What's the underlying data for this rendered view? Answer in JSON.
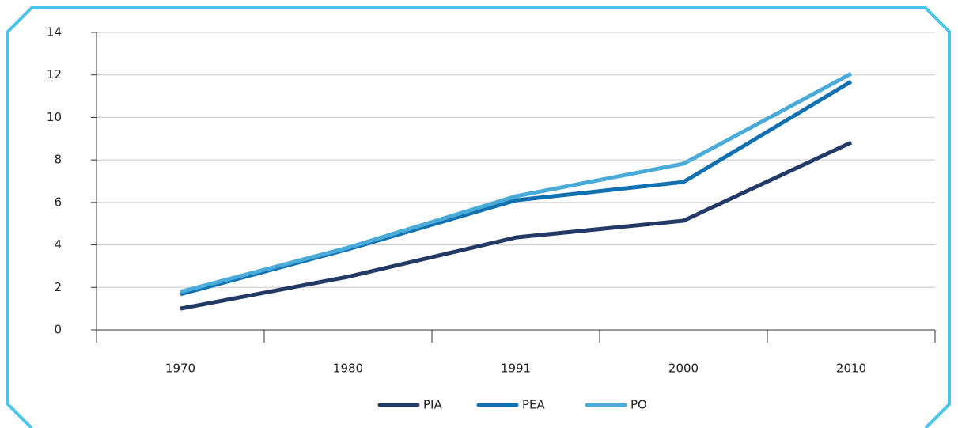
{
  "chart_data": {
    "type": "line",
    "categories": [
      "1970",
      "1980",
      "1991",
      "2000",
      "2010"
    ],
    "series": [
      {
        "name": "PIA",
        "color": "#243a66",
        "values": [
          1.0,
          2.5,
          4.35,
          5.14,
          8.82
        ]
      },
      {
        "name": "PEA",
        "color": "#1070b0",
        "values": [
          1.68,
          3.8,
          6.1,
          6.96,
          11.69
        ]
      },
      {
        "name": "PO",
        "color": "#4aaad8",
        "values": [
          1.79,
          3.87,
          6.29,
          7.82,
          12.06
        ]
      }
    ],
    "ylim": [
      0,
      14
    ],
    "yticks": [
      0,
      2,
      4,
      6,
      8,
      10,
      12,
      14
    ],
    "grid": true,
    "legend": "bottom"
  }
}
